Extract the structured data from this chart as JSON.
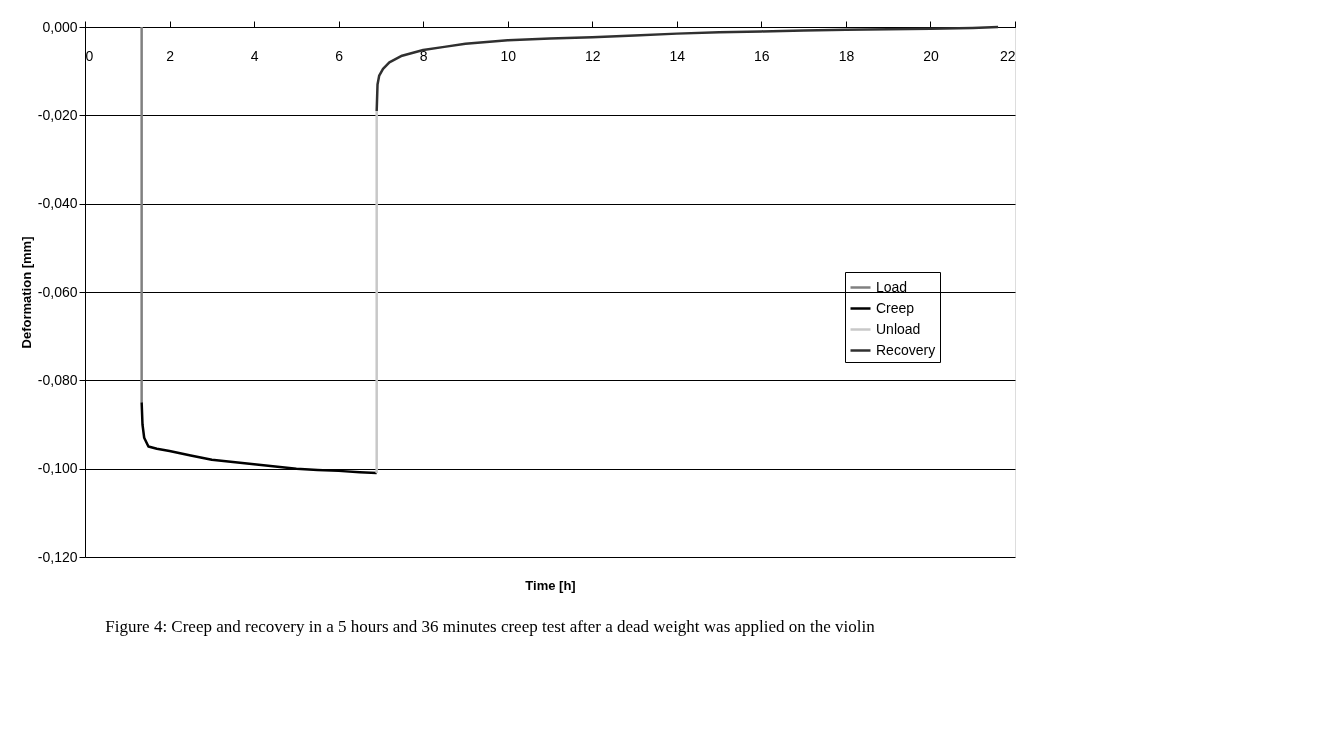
{
  "chart_data": {
    "type": "line",
    "xlabel": "Time [h]",
    "ylabel": "Deformation [mm]",
    "annotations": [
      "Figure 4: Creep and recovery in a 5 hours and 36 minutes creep test after a dead weight was applied on the violin"
    ],
    "series": [
      {
        "name": "Load",
        "color": "#808080",
        "x": [
          1.34,
          1.34
        ],
        "values": [
          0.0,
          -0.085
        ]
      },
      {
        "name": "Creep",
        "color": "#000000",
        "x": [
          1.34,
          1.36,
          1.4,
          1.5,
          1.7,
          2,
          2.5,
          3,
          3.5,
          4,
          4.5,
          5,
          5.5,
          6,
          6.5,
          6.9
        ],
        "values": [
          -0.085,
          -0.09,
          -0.093,
          -0.095,
          -0.0955,
          -0.096,
          -0.097,
          -0.098,
          -0.0985,
          -0.099,
          -0.0995,
          -0.1,
          -0.1003,
          -0.1005,
          -0.1008,
          -0.101
        ]
      },
      {
        "name": "Unload",
        "color": "#c8c8c8",
        "x": [
          6.9,
          6.9
        ],
        "values": [
          -0.101,
          -0.019
        ]
      },
      {
        "name": "Recovery",
        "color": "#303030",
        "x": [
          6.9,
          6.92,
          6.96,
          7.05,
          7.2,
          7.5,
          8,
          8.5,
          9,
          10,
          11,
          12,
          13,
          14,
          15,
          16,
          17,
          18,
          19,
          20,
          21,
          21.6
        ],
        "values": [
          -0.019,
          -0.013,
          -0.011,
          -0.0095,
          -0.008,
          -0.0065,
          -0.0052,
          -0.0045,
          -0.0038,
          -0.003,
          -0.0026,
          -0.0023,
          -0.0019,
          -0.0015,
          -0.0012,
          -0.001,
          -0.0008,
          -0.0006,
          -0.0005,
          -0.0004,
          -0.0002,
          0.0
        ]
      }
    ],
    "xlim": [
      0,
      22
    ],
    "xticks": [
      0,
      2,
      4,
      6,
      8,
      10,
      12,
      14,
      16,
      18,
      20,
      22
    ],
    "ylim": [
      -0.12,
      0.0
    ],
    "yticks": [
      {
        "value": -0.12,
        "label": "-0,120"
      },
      {
        "value": -0.1,
        "label": "-0,100"
      },
      {
        "value": -0.08,
        "label": "-0,080"
      },
      {
        "value": -0.06,
        "label": "-0,060"
      },
      {
        "value": -0.04,
        "label": "-0,040"
      },
      {
        "value": -0.02,
        "label": "-0,020"
      },
      {
        "value": 0.0,
        "label": "0,000"
      }
    ],
    "grid": "y",
    "legend": "right",
    "line_style": "solid",
    "marker": "none"
  }
}
